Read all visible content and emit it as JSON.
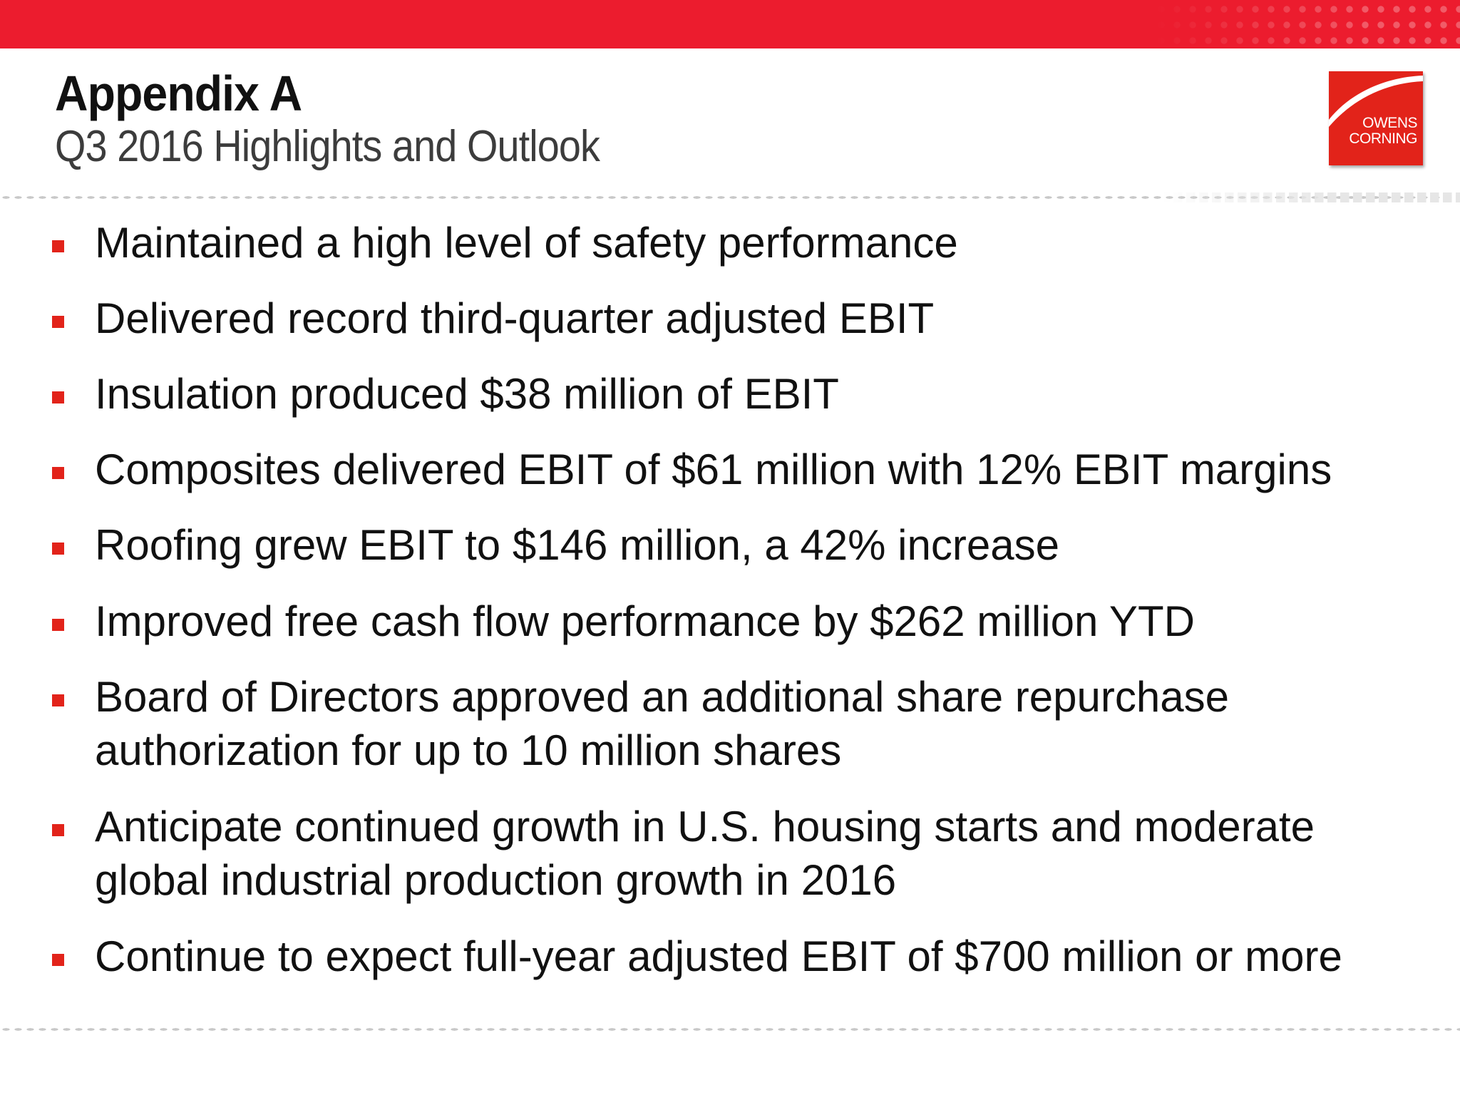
{
  "header": {
    "title": "Appendix A",
    "subtitle": "Q3 2016 Highlights and Outlook"
  },
  "logo": {
    "line1": "OWENS",
    "line2": "CORNING",
    "color": "#e2231a"
  },
  "colors": {
    "accent": "#ec1c2e",
    "bullet": "#e2231a"
  },
  "bullets": [
    {
      "text": "Maintained a high level of safety performance"
    },
    {
      "text": "Delivered record third-quarter adjusted EBIT"
    },
    {
      "text": "Insulation produced $38 million of EBIT"
    },
    {
      "text": "Composites delivered EBIT of $61 million with 12% EBIT margins"
    },
    {
      "text": "Roofing grew EBIT to $146 million, a 42% increase"
    },
    {
      "text": "Improved free cash flow performance by $262 million YTD"
    },
    {
      "text": "Board of Directors approved an additional share repurchase authorization for up to 10 million shares"
    },
    {
      "text": "Anticipate continued growth in U.S. housing starts and moderate global industrial production growth in 2016"
    },
    {
      "text": "Continue to expect full-year adjusted EBIT of $700 million or more"
    }
  ]
}
